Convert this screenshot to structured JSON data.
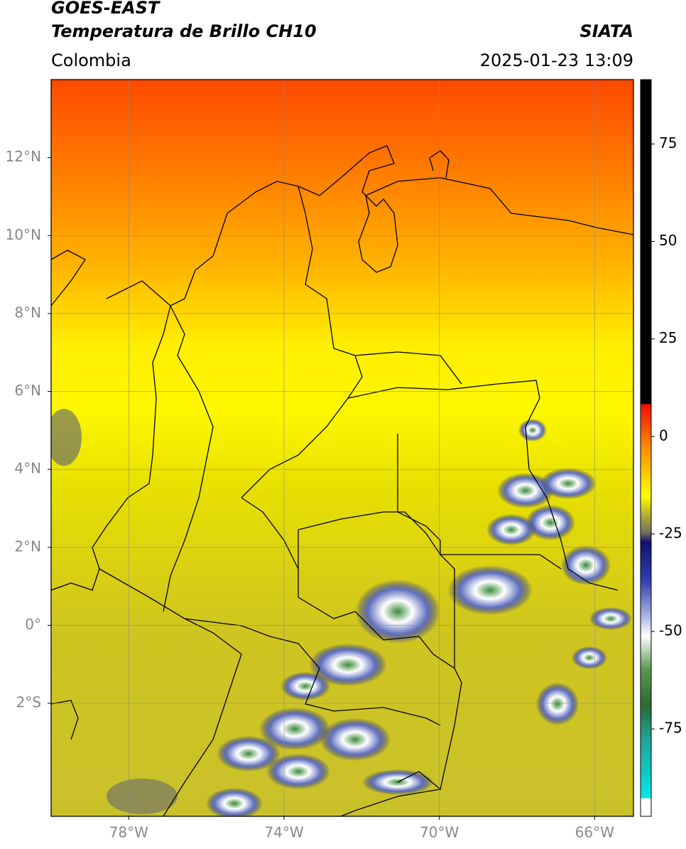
{
  "header": {
    "title": "GOES-EAST",
    "subtitle": "Temperatura de Brillo CH10",
    "source": "SIATA",
    "region": "Colombia",
    "timestamp": "2025-01-23 13:09"
  },
  "chart_data": {
    "type": "map",
    "xlim": [
      -80,
      -65
    ],
    "ylim": [
      -4.9,
      14
    ],
    "xticks": [
      {
        "value": -78,
        "label": "78°W"
      },
      {
        "value": -74,
        "label": "74°W"
      },
      {
        "value": -70,
        "label": "70°W"
      },
      {
        "value": -66,
        "label": "66°W"
      }
    ],
    "yticks": [
      {
        "value": 12,
        "label": "12°N"
      },
      {
        "value": 10,
        "label": "10°N"
      },
      {
        "value": 8,
        "label": "8°N"
      },
      {
        "value": 6,
        "label": "6°N"
      },
      {
        "value": 4,
        "label": "4°N"
      },
      {
        "value": 2,
        "label": "2°N"
      },
      {
        "value": 0,
        "label": "0°"
      },
      {
        "value": -2,
        "label": "2°S"
      }
    ],
    "grid": true,
    "colorbar": {
      "lim": [
        -97.4,
        91.5
      ],
      "ticks": [
        75,
        50,
        25,
        0,
        -25,
        -50,
        -75
      ]
    }
  }
}
